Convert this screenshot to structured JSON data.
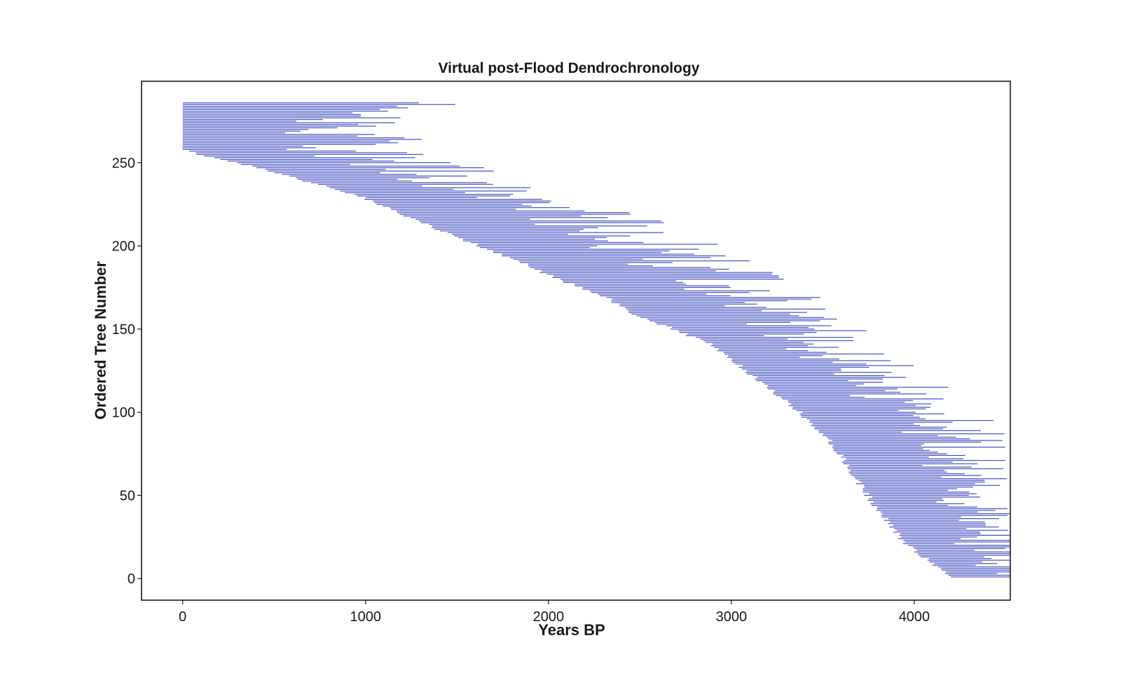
{
  "chart_data": {
    "type": "range-bars",
    "title": "Virtual post-Flood Dendrochronology",
    "xlabel": "Years BP",
    "ylabel": "Ordered Tree Number",
    "xlim": [
      -225,
      4525
    ],
    "ylim": [
      -13,
      299
    ],
    "xticks": [
      "0",
      "1000",
      "2000",
      "3000",
      "4000"
    ],
    "yticks": [
      "0",
      "50",
      "100",
      "150",
      "200",
      "250"
    ],
    "grid": false,
    "line_color": "#4b57c4",
    "tree_count": 286,
    "start_anchors": [
      [
        1,
        4200
      ],
      [
        20,
        3960
      ],
      [
        40,
        3810
      ],
      [
        60,
        3680
      ],
      [
        80,
        3560
      ],
      [
        100,
        3370
      ],
      [
        120,
        3140
      ],
      [
        140,
        2900
      ],
      [
        150,
        2680
      ],
      [
        160,
        2450
      ],
      [
        170,
        2300
      ],
      [
        180,
        2050
      ],
      [
        190,
        1850
      ],
      [
        200,
        1620
      ],
      [
        210,
        1390
      ],
      [
        220,
        1180
      ],
      [
        230,
        970
      ],
      [
        240,
        640
      ],
      [
        250,
        300
      ],
      [
        255,
        80
      ],
      [
        258,
        0
      ],
      [
        286,
        0
      ]
    ],
    "length_anchors": [
      [
        1,
        330
      ],
      [
        30,
        520
      ],
      [
        60,
        580
      ],
      [
        100,
        700
      ],
      [
        140,
        600
      ],
      [
        160,
        800
      ],
      [
        200,
        900
      ],
      [
        250,
        850
      ],
      [
        286,
        1000
      ]
    ]
  }
}
